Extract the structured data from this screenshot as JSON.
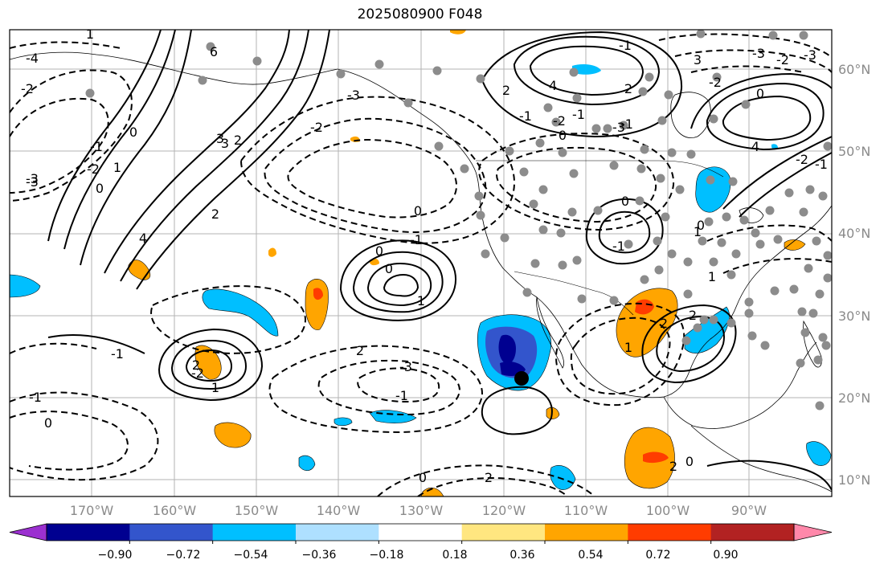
{
  "title": "2025080900 F048",
  "colors": {
    "border": "#000000",
    "grid": "#b3b3b3",
    "contour": "#000000",
    "station": "#8c8c8c",
    "axis_label": "#8a8a8a"
  },
  "lat_labels": [
    "60°N",
    "50°N",
    "40°N",
    "30°N",
    "20°N",
    "10°N"
  ],
  "lon_labels": [
    "170°W",
    "160°W",
    "150°W",
    "140°W",
    "130°W",
    "120°W",
    "110°W",
    "100°W",
    "90°W"
  ],
  "colorbar": {
    "tick_labels": [
      "−0.90",
      "−0.72",
      "−0.54",
      "−0.36",
      "−0.18",
      "0.18",
      "0.36",
      "0.54",
      "0.72",
      "0.90"
    ],
    "colors": [
      "#9b30d0",
      "#000090",
      "#3355cc",
      "#00bfff",
      "#aee0ff",
      "#ffffff",
      "#ffe680",
      "#ffa500",
      "#ff3c00",
      "#b22222",
      "#ff88aa"
    ]
  },
  "contour_labels": [
    "6",
    "-4",
    "-2",
    "-3",
    "1",
    "0",
    "-3",
    "2",
    "3",
    "-1",
    "4",
    "-2",
    "2",
    "-3",
    "1",
    "0",
    "-2",
    "2",
    "0",
    "3",
    "4",
    "-1",
    "-2",
    "2",
    "-1",
    "2",
    "-1",
    "0",
    "-3",
    "-1",
    "0",
    "4",
    "3",
    "-2",
    "-3",
    "-3",
    "-2",
    "-1",
    "-2",
    "-1",
    "0",
    "1",
    "0",
    "1",
    "2",
    "1",
    "2",
    "0",
    "2",
    "-3",
    "-1",
    "0",
    "2",
    "0",
    "1",
    "0",
    "-1",
    "-1",
    "0",
    "-1",
    "2",
    "1",
    "-2"
  ]
}
